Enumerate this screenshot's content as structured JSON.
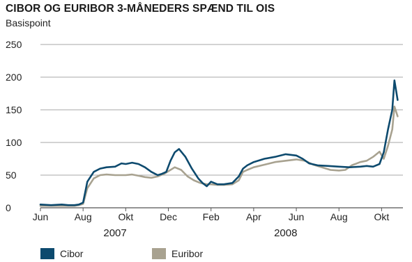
{
  "chart_data": {
    "type": "line",
    "title": "CIBOR OG EURIBOR 3-MÅNEDERS SPÆND TIL OIS",
    "ylabel": "Basispoint",
    "ylim": [
      0,
      250
    ],
    "yticks": [
      "0",
      "50",
      "100",
      "150",
      "200",
      "250"
    ],
    "xlim": [
      0,
      17
    ],
    "xticks": [
      {
        "x": 0,
        "label": "Jun"
      },
      {
        "x": 2,
        "label": "Aug"
      },
      {
        "x": 4,
        "label": "Okt"
      },
      {
        "x": 6,
        "label": "Dec"
      },
      {
        "x": 8,
        "label": "Feb"
      },
      {
        "x": 10,
        "label": "Apr"
      },
      {
        "x": 12,
        "label": "Jun"
      },
      {
        "x": 14,
        "label": "Aug"
      },
      {
        "x": 16,
        "label": "Okt"
      }
    ],
    "years": [
      {
        "x": 3.5,
        "label": "2007"
      },
      {
        "x": 11.5,
        "label": "2008"
      }
    ],
    "grid": true,
    "legend_position": "bottom-left",
    "series": [
      {
        "name": "Cibor",
        "color": "#0d4a6e",
        "x": [
          0,
          0.5,
          1.0,
          1.3,
          1.6,
          1.8,
          2.0,
          2.2,
          2.5,
          2.8,
          3.1,
          3.5,
          3.8,
          4.0,
          4.3,
          4.6,
          4.9,
          5.2,
          5.5,
          5.7,
          5.9,
          6.1,
          6.3,
          6.5,
          6.8,
          7.1,
          7.4,
          7.6,
          7.8,
          8.0,
          8.3,
          8.6,
          9.0,
          9.3,
          9.5,
          9.7,
          10.0,
          10.5,
          11.0,
          11.5,
          12.0,
          12.3,
          12.6,
          13.0,
          13.5,
          14.0,
          14.5,
          15.0,
          15.3,
          15.6,
          15.9,
          16.1,
          16.3,
          16.5,
          16.6,
          16.75
        ],
        "y": [
          5,
          4,
          5,
          4,
          4,
          5,
          8,
          40,
          55,
          60,
          62,
          63,
          68,
          67,
          69,
          67,
          62,
          55,
          50,
          52,
          55,
          72,
          85,
          90,
          78,
          60,
          45,
          38,
          33,
          40,
          36,
          36,
          38,
          48,
          60,
          65,
          70,
          75,
          78,
          82,
          80,
          75,
          68,
          65,
          64,
          63,
          62,
          63,
          64,
          63,
          67,
          85,
          120,
          150,
          195,
          165
        ]
      },
      {
        "name": "Euribor",
        "color": "#a8a290",
        "x": [
          0,
          0.5,
          1.0,
          1.3,
          1.6,
          1.8,
          2.0,
          2.2,
          2.5,
          2.8,
          3.1,
          3.5,
          3.8,
          4.0,
          4.3,
          4.6,
          4.9,
          5.2,
          5.5,
          5.8,
          6.1,
          6.3,
          6.6,
          6.9,
          7.2,
          7.5,
          7.8,
          8.0,
          8.3,
          8.6,
          9.0,
          9.3,
          9.5,
          9.7,
          10.0,
          10.5,
          11.0,
          11.5,
          12.0,
          12.4,
          12.8,
          13.2,
          13.6,
          14.0,
          14.3,
          14.6,
          15.0,
          15.3,
          15.6,
          15.9,
          16.1,
          16.3,
          16.5,
          16.6,
          16.75
        ],
        "y": [
          3,
          3,
          3,
          3,
          3,
          4,
          6,
          30,
          45,
          50,
          51,
          50,
          50,
          50,
          51,
          49,
          47,
          46,
          48,
          52,
          58,
          62,
          58,
          48,
          42,
          38,
          36,
          36,
          35,
          35,
          36,
          42,
          55,
          58,
          62,
          66,
          70,
          72,
          74,
          72,
          66,
          62,
          58,
          57,
          58,
          65,
          70,
          72,
          78,
          86,
          75,
          95,
          120,
          155,
          140
        ]
      }
    ]
  }
}
